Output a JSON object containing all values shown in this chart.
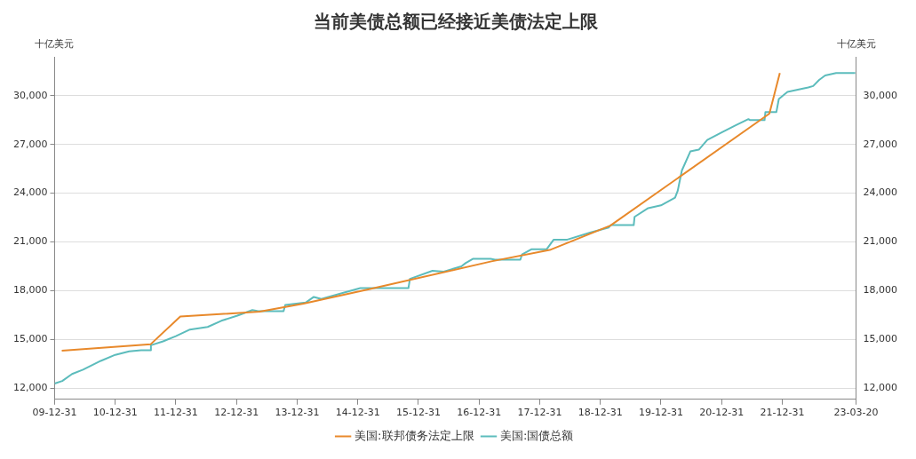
{
  "chart_data": {
    "type": "line",
    "title": "当前美债总额已经接近美债法定上限",
    "ylabel": "十亿美元",
    "y2label": "十亿美元",
    "xlim": [
      "2009-12-31",
      "2023-03-20"
    ],
    "xticks": [
      {
        "value": "2009-12-31",
        "label": "09-12-31"
      },
      {
        "value": "2010-12-31",
        "label": "10-12-31"
      },
      {
        "value": "2011-12-31",
        "label": "11-12-31"
      },
      {
        "value": "2012-12-31",
        "label": "12-12-31"
      },
      {
        "value": "2013-12-31",
        "label": "13-12-31"
      },
      {
        "value": "2014-12-31",
        "label": "14-12-31"
      },
      {
        "value": "2015-12-31",
        "label": "15-12-31"
      },
      {
        "value": "2016-12-31",
        "label": "16-12-31"
      },
      {
        "value": "2017-12-31",
        "label": "17-12-31"
      },
      {
        "value": "2018-12-31",
        "label": "18-12-31"
      },
      {
        "value": "2019-12-31",
        "label": "19-12-31"
      },
      {
        "value": "2020-12-31",
        "label": "20-12-31"
      },
      {
        "value": "2021-12-31",
        "label": "21-12-31"
      },
      {
        "value": "2023-03-20",
        "label": "23-03-20"
      }
    ],
    "ylim": [
      11300,
      32400
    ],
    "yticks": [
      {
        "value": 12000,
        "label": "12,000"
      },
      {
        "value": 15000,
        "label": "15,000"
      },
      {
        "value": 18000,
        "label": "18,000"
      },
      {
        "value": 21000,
        "label": "21,000"
      },
      {
        "value": 24000,
        "label": "24,000"
      },
      {
        "value": 27000,
        "label": "27,000"
      },
      {
        "value": 30000,
        "label": "30,000"
      }
    ],
    "y2lim": [
      11300,
      32400
    ],
    "y2ticks": [
      {
        "value": 12000,
        "label": "12,000"
      },
      {
        "value": 15000,
        "label": "15,000"
      },
      {
        "value": 18000,
        "label": "18,000"
      },
      {
        "value": 21000,
        "label": "21,000"
      },
      {
        "value": 24000,
        "label": "24,000"
      },
      {
        "value": 27000,
        "label": "27,000"
      },
      {
        "value": 30000,
        "label": "30,000"
      }
    ],
    "grid": "y",
    "legend": "bottom",
    "marker": "none",
    "line_style": "solid",
    "series": [
      {
        "name": "美国:联邦债务法定上限",
        "color": "#e8892b",
        "x": [
          "2010-02-12",
          "2011-08-02",
          "2012-01-27",
          "2013-05-19",
          "2014-02-07",
          "2015-03-15",
          "2017-03-15",
          "2018-03-01",
          "2019-03-01",
          "2021-10-14",
          "2021-12-16"
        ],
        "values": [
          14300,
          14700,
          16400,
          16700,
          17200,
          18100,
          19800,
          20500,
          22000,
          28900,
          31400
        ]
      },
      {
        "name": "美国:国债总额",
        "color": "#5cbcbc",
        "x": [
          "2009-12-31",
          "2010-02-15",
          "2010-04-15",
          "2010-06-20",
          "2010-10-05",
          "2010-12-31",
          "2011-03-25",
          "2011-06-05",
          "2011-07-30",
          "2011-08-03",
          "2011-10-15",
          "2011-12-31",
          "2012-03-25",
          "2012-07-10",
          "2012-09-30",
          "2013-01-05",
          "2013-04-05",
          "2013-05-10",
          "2013-10-10",
          "2013-10-20",
          "2014-02-20",
          "2014-04-10",
          "2014-05-25",
          "2014-10-20",
          "2015-01-15",
          "2015-11-01",
          "2015-11-10",
          "2016-03-25",
          "2016-06-01",
          "2016-09-15",
          "2016-10-10",
          "2016-11-25",
          "2017-03-10",
          "2017-04-05",
          "2017-09-05",
          "2017-09-15",
          "2017-11-10",
          "2018-02-10",
          "2018-03-25",
          "2018-06-15",
          "2018-10-30",
          "2019-02-20",
          "2019-03-05",
          "2019-07-20",
          "2019-07-25",
          "2019-10-15",
          "2019-12-31",
          "2020-03-25",
          "2020-04-10",
          "2020-05-05",
          "2020-06-25",
          "2020-08-15",
          "2020-10-05",
          "2020-12-31",
          "2021-03-25",
          "2021-06-10",
          "2021-06-20",
          "2021-09-15",
          "2021-09-20",
          "2021-11-25",
          "2021-12-10",
          "2022-01-31",
          "2022-06-05",
          "2022-07-05",
          "2022-08-10",
          "2022-09-15",
          "2022-11-20",
          "2023-03-15"
        ],
        "values": [
          12270,
          12430,
          12860,
          13130,
          13670,
          14040,
          14260,
          14330,
          14330,
          14630,
          14870,
          15190,
          15600,
          15760,
          16140,
          16460,
          16800,
          16730,
          16730,
          17120,
          17260,
          17610,
          17480,
          17910,
          18150,
          18150,
          18720,
          19220,
          19170,
          19490,
          19690,
          19960,
          19960,
          19900,
          19900,
          20220,
          20540,
          20540,
          21140,
          21140,
          21570,
          21890,
          22030,
          22030,
          22540,
          23080,
          23250,
          23720,
          24150,
          25400,
          26570,
          26680,
          27280,
          27750,
          28180,
          28560,
          28500,
          28500,
          28990,
          28990,
          29800,
          30240,
          30510,
          30600,
          30980,
          31250,
          31400,
          31400
        ]
      }
    ]
  }
}
